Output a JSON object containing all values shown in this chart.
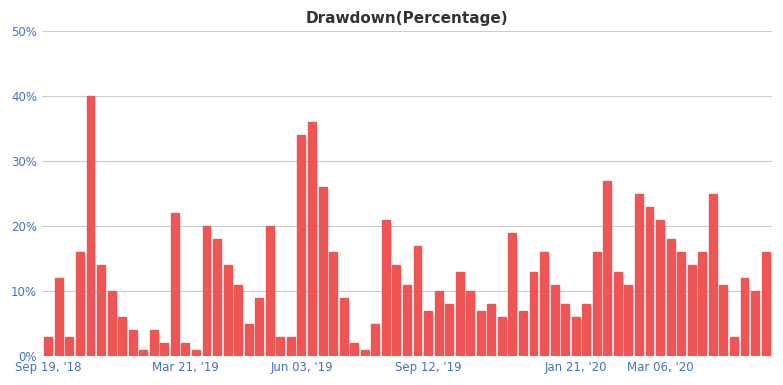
{
  "title": "Drawdown(Percentage)",
  "title_fontsize": 11,
  "title_fontweight": "bold",
  "bar_color": "#f05555",
  "background_color": "#ffffff",
  "grid_color": "#cccccc",
  "ylim": [
    0,
    50
  ],
  "yticks": [
    0,
    10,
    20,
    30,
    40,
    50
  ],
  "ytick_labels": [
    "0%",
    "10%",
    "20%",
    "30%",
    "40%",
    "50%"
  ],
  "xtick_labels": [
    "Sep 19, '18",
    "Mar 21, '19",
    "Jun 03, '19",
    "Sep 12, '19",
    "Jan 21, '20",
    "Mar 06, '20"
  ],
  "bar_values": [
    3,
    12,
    3,
    16,
    40,
    14,
    10,
    6,
    4,
    1,
    4,
    2,
    22,
    2,
    1,
    20,
    18,
    14,
    11,
    5,
    9,
    20,
    3,
    3,
    34,
    36,
    26,
    16,
    9,
    2,
    1,
    5,
    21,
    14,
    11,
    17,
    7,
    10,
    8,
    13,
    10,
    7,
    8,
    6,
    19,
    7,
    13,
    16,
    11,
    8,
    6,
    8,
    16,
    27,
    13,
    11,
    25,
    23,
    21,
    18,
    16,
    14,
    16,
    25,
    11,
    3,
    12,
    10,
    16
  ],
  "xtick_positions": [
    0,
    13,
    24,
    36,
    50,
    58
  ],
  "bar_width": 0.75
}
